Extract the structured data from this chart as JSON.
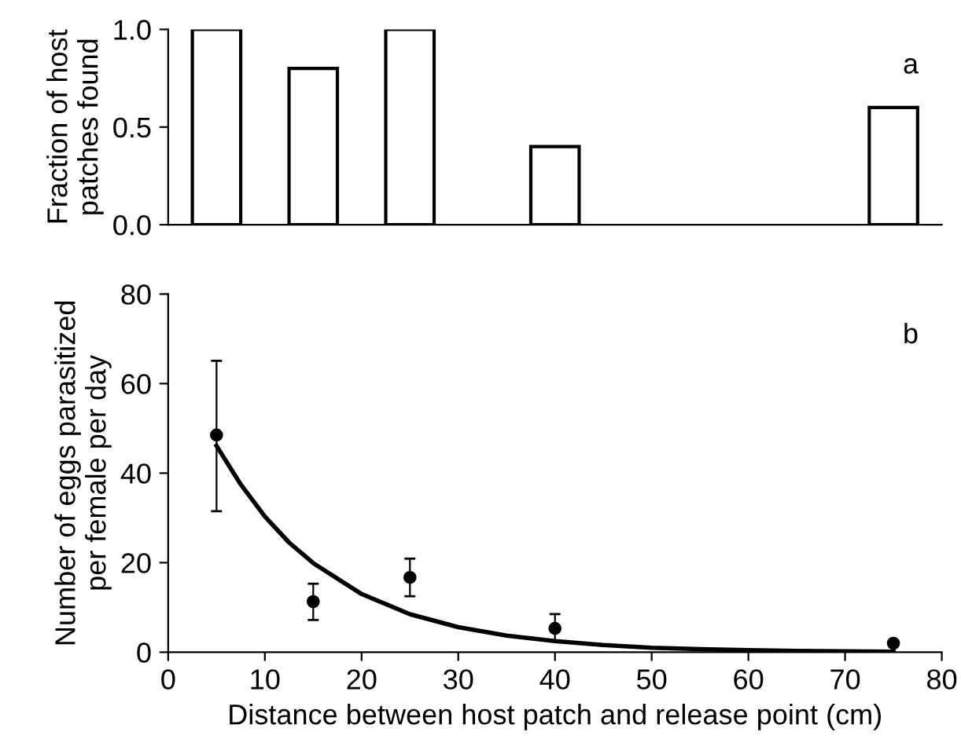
{
  "chart_data": [
    {
      "type": "bar",
      "ylabel": "Fraction of host\npatches found",
      "x": [
        5,
        15,
        25,
        40,
        75
      ],
      "values": [
        1.0,
        0.8,
        1.0,
        0.4,
        0.6
      ],
      "color": "#ffffff",
      "xlim": [
        0,
        80
      ],
      "ylim": [
        0,
        1
      ],
      "yticks": [
        {
          "value": 0,
          "label": "0.0"
        },
        {
          "value": 0.5,
          "label": "0.5"
        },
        {
          "value": 1,
          "label": "1.0"
        }
      ],
      "tick_labels": "y",
      "grid": false,
      "annotations": [
        "a"
      ]
    },
    {
      "type": "scatter",
      "xlabel": "Distance between host patch and release point (cm)",
      "ylabel": "Number of eggs parasitized\nper female per day",
      "xlim": [
        0,
        80
      ],
      "ylim": [
        0,
        80
      ],
      "xticks": [
        0,
        10,
        20,
        30,
        40,
        50,
        60,
        70,
        80
      ],
      "yticks": [
        0,
        20,
        40,
        60,
        80
      ],
      "grid": false,
      "annotations": [
        "b"
      ],
      "series": [
        {
          "type": "scatter",
          "color": "#000000",
          "marker": "circle",
          "x": [
            5,
            15,
            25,
            40,
            75
          ],
          "values": [
            48.5,
            11.3,
            16.7,
            5.3,
            2.0
          ],
          "errors": [
            [
              31.5,
              65.1
            ],
            [
              7.2,
              15.3
            ],
            [
              12.5,
              20.9
            ],
            [
              2.5,
              8.5
            ],
            null
          ]
        },
        {
          "type": "line",
          "color": "#000000",
          "marker": "none",
          "line_style": "solid",
          "x": [
            5,
            7.5,
            10,
            12.5,
            15,
            20,
            25,
            30,
            35,
            40,
            45,
            50,
            55,
            60,
            65,
            70,
            75
          ],
          "values": [
            46.1,
            37.5,
            30.3,
            24.5,
            19.9,
            13.0,
            8.5,
            5.6,
            3.7,
            2.5,
            1.6,
            1.0,
            0.7,
            0.45,
            0.3,
            0.2,
            0.13
          ]
        }
      ]
    }
  ]
}
